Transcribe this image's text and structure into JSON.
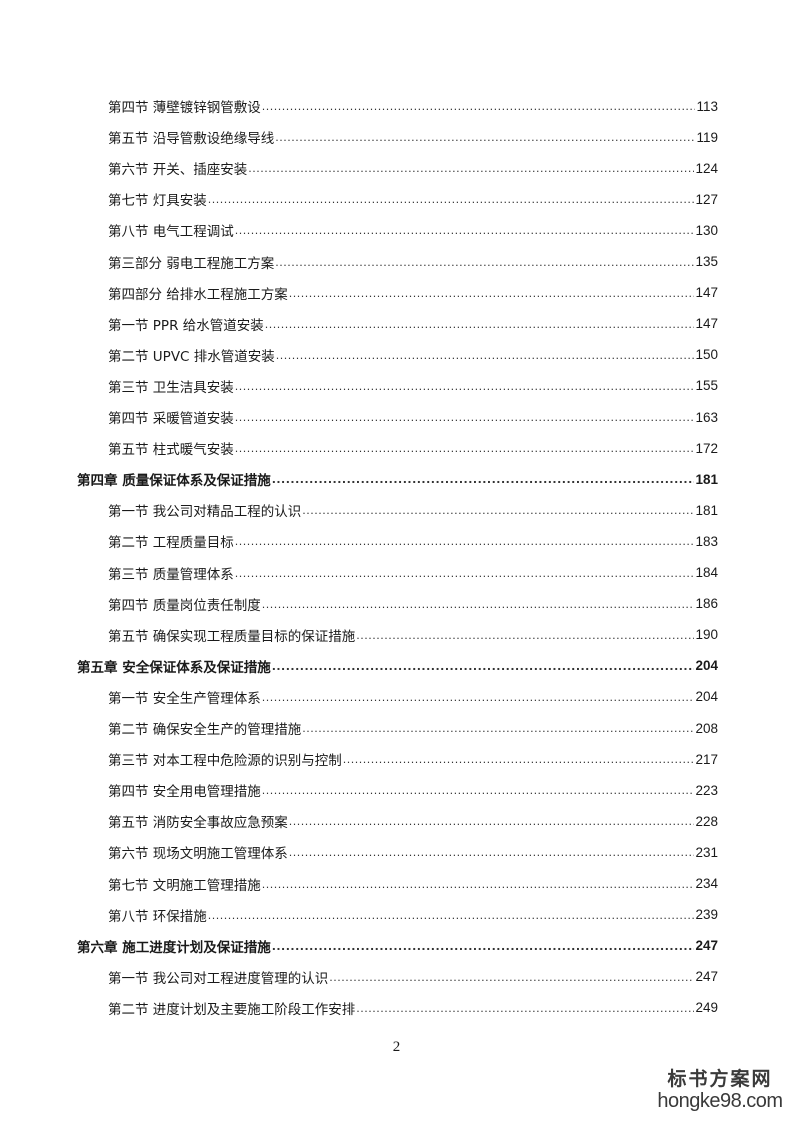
{
  "toc": [
    {
      "level": "section",
      "title": "第四节 薄壁镀锌钢管敷设",
      "page": "113"
    },
    {
      "level": "section",
      "title": "第五节 沿导管敷设绝缘导线",
      "page": "119"
    },
    {
      "level": "section",
      "title": "第六节 开关、插座安装",
      "page": "124"
    },
    {
      "level": "section",
      "title": "第七节 灯具安装",
      "page": "127"
    },
    {
      "level": "section",
      "title": "第八节 电气工程调试",
      "page": "130"
    },
    {
      "level": "section",
      "title": "第三部分 弱电工程施工方案",
      "page": "135"
    },
    {
      "level": "section",
      "title": "第四部分 给排水工程施工方案",
      "page": "147"
    },
    {
      "level": "section",
      "title": "第一节 PPR 给水管道安装",
      "page": "147"
    },
    {
      "level": "section",
      "title": "第二节 UPVC 排水管道安装",
      "page": "150"
    },
    {
      "level": "section",
      "title": "第三节 卫生洁具安装",
      "page": "155"
    },
    {
      "level": "section",
      "title": "第四节 采暖管道安装",
      "page": "163"
    },
    {
      "level": "section",
      "title": "第五节 柱式暖气安装",
      "page": "172"
    },
    {
      "level": "chapter",
      "title": "第四章  质量保证体系及保证措施",
      "page": "181"
    },
    {
      "level": "section",
      "title": "第一节 我公司对精品工程的认识",
      "page": "181"
    },
    {
      "level": "section",
      "title": "第二节 工程质量目标",
      "page": "183"
    },
    {
      "level": "section",
      "title": "第三节 质量管理体系",
      "page": "184"
    },
    {
      "level": "section",
      "title": "第四节 质量岗位责任制度",
      "page": "186"
    },
    {
      "level": "section",
      "title": "第五节 确保实现工程质量目标的保证措施",
      "page": "190"
    },
    {
      "level": "chapter",
      "title": "第五章  安全保证体系及保证措施",
      "page": "204"
    },
    {
      "level": "section",
      "title": "第一节 安全生产管理体系",
      "page": "204"
    },
    {
      "level": "section",
      "title": "第二节 确保安全生产的管理措施",
      "page": "208"
    },
    {
      "level": "section",
      "title": "第三节 对本工程中危险源的识别与控制",
      "page": "217"
    },
    {
      "level": "section",
      "title": "第四节 安全用电管理措施",
      "page": "223"
    },
    {
      "level": "section",
      "title": "第五节 消防安全事故应急预案",
      "page": "228"
    },
    {
      "level": "section",
      "title": "第六节 现场文明施工管理体系",
      "page": "231"
    },
    {
      "level": "section",
      "title": "第七节 文明施工管理措施",
      "page": "234"
    },
    {
      "level": "section",
      "title": "第八节 环保措施",
      "page": "239"
    },
    {
      "level": "chapter",
      "title": "第六章  施工进度计划及保证措施",
      "page": "247"
    },
    {
      "level": "section",
      "title": "第一节 我公司对工程进度管理的认识",
      "page": "247"
    },
    {
      "level": "section",
      "title": "第二节 进度计划及主要施工阶段工作安排",
      "page": "249"
    }
  ],
  "page_number": "2",
  "watermark": {
    "cn": "标书方案网",
    "en": "hongke98.com"
  }
}
